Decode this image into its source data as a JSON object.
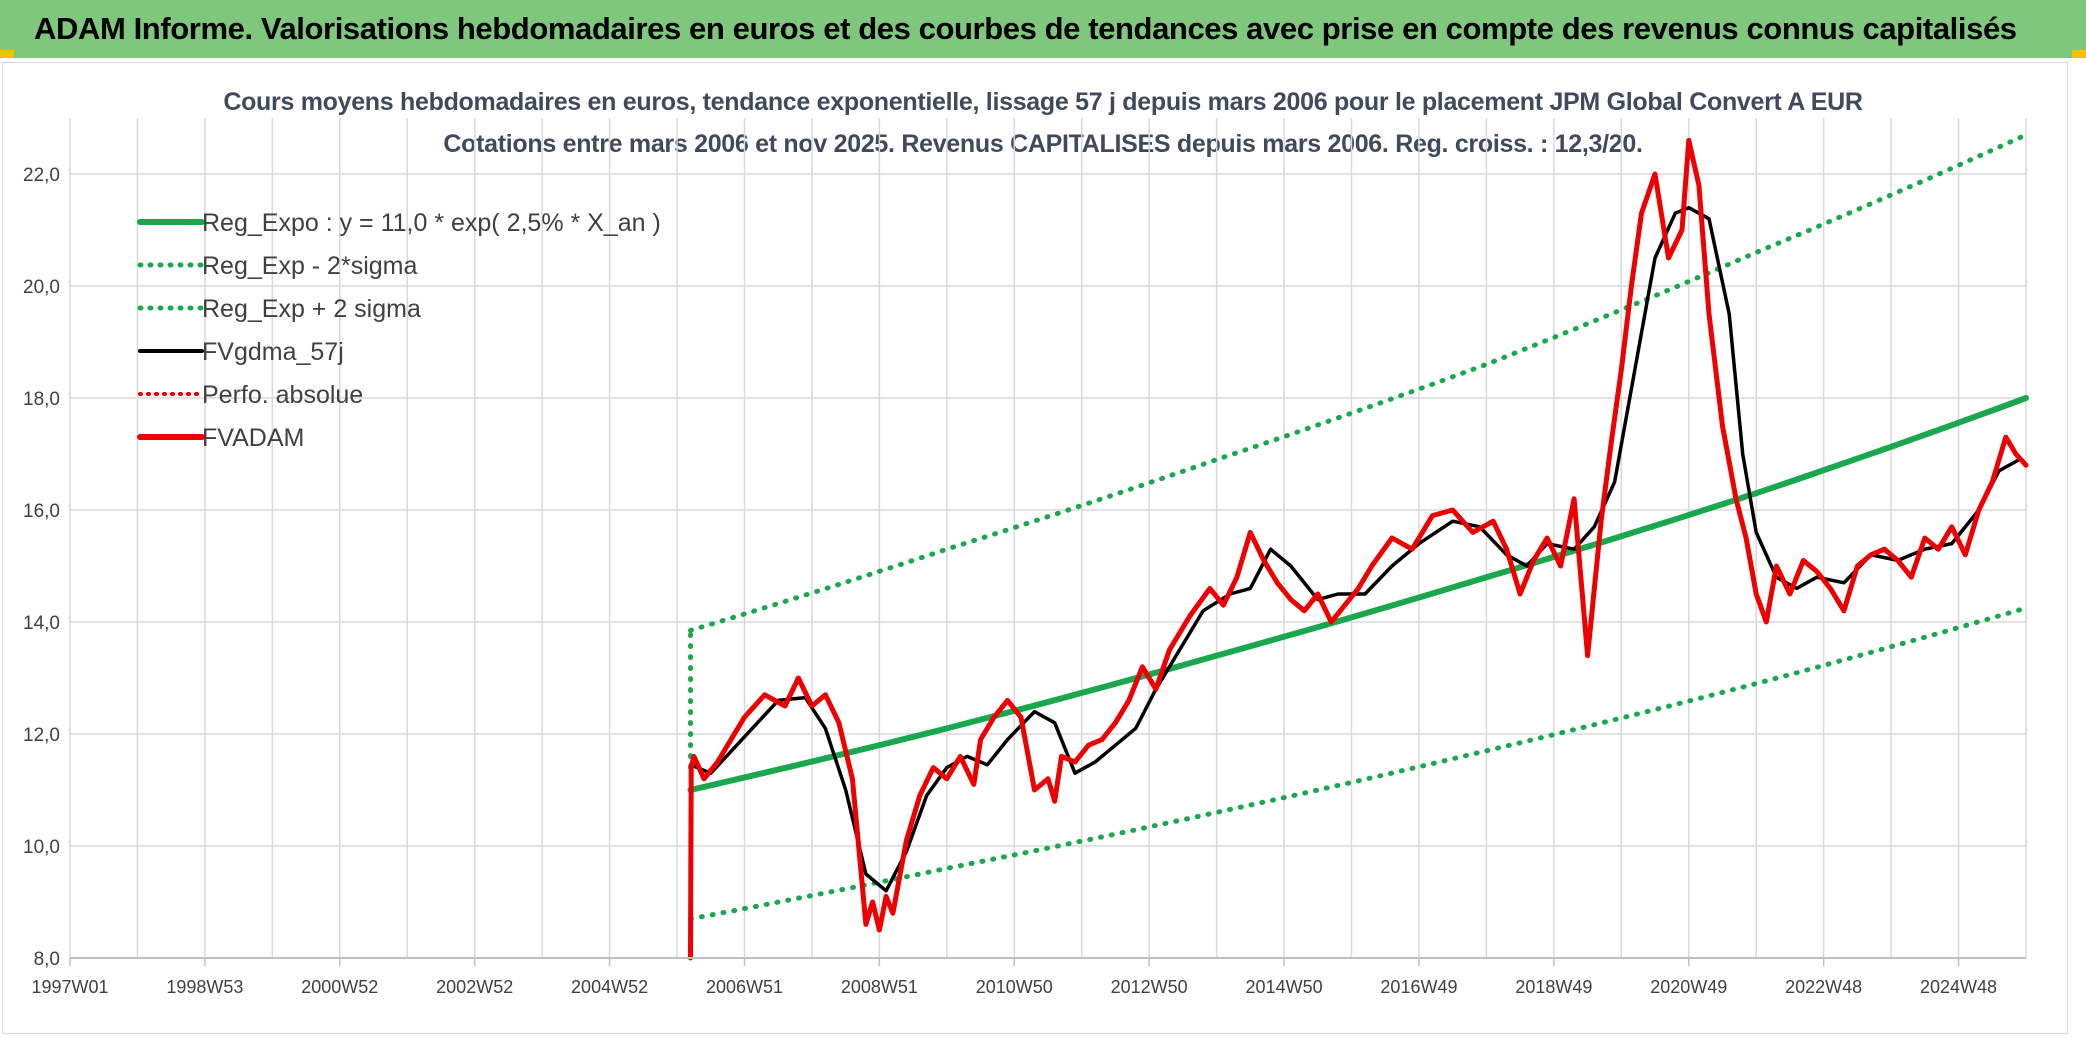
{
  "banner": {
    "title": "ADAM Informe. Valorisations hebdomadaires en euros et des courbes de tendances avec prise en compte des revenus connus capitalisés"
  },
  "colors": {
    "banner_bg": "#7ec77c",
    "trend_green": "#1aa84e",
    "dotted_green": "#1aa84e",
    "fvgdma_black": "#000000",
    "fvadam_red": "#ee0000",
    "perfo_red": "#ee0000"
  },
  "chart_data": {
    "type": "line",
    "title_line1": "Cours moyens hebdomadaires en euros, tendance exponentielle, lissage 57 j depuis mars 2006 pour le placement JPM Global Convert A EUR",
    "title_line2": "Cotations entre mars 2006 et nov 2025. Revenus CAPITALISES depuis mars 2006. Reg. croiss. : 12,3/20.",
    "xlabel": "",
    "ylabel": "",
    "x_range": [
      1997.0,
      2026.0
    ],
    "ylim": [
      8.0,
      23.0
    ],
    "y_ticks": [
      "8,0",
      "10,0",
      "12,0",
      "14,0",
      "16,0",
      "18,0",
      "20,0",
      "22,0"
    ],
    "x_ticks": [
      "1997W01",
      "1998W53",
      "2000W52",
      "2002W52",
      "2004W52",
      "2006W51",
      "2008W51",
      "2010W50",
      "2012W50",
      "2014W50",
      "2016W49",
      "2018W49",
      "2020W49",
      "2022W48",
      "2024W48"
    ],
    "grid": true,
    "legend_position": "top-left",
    "legend": [
      {
        "label": "Reg_Expo : y = 11,0 * exp( 2,5% *  X_an )",
        "style": "solid-thick-green"
      },
      {
        "label": "Reg_Exp - 2*sigma",
        "style": "dotted-green"
      },
      {
        "label": "Reg_Exp + 2 sigma",
        "style": "dotted-green"
      },
      {
        "label": "FVgdma_57j",
        "style": "solid-black"
      },
      {
        "label": "Perfo. absolue",
        "style": "dotted-red"
      },
      {
        "label": "FVADAM",
        "style": "solid-red"
      }
    ],
    "series": [
      {
        "name": "Reg_Expo : y = 11,0 * exp( 2,5% *  X_an )",
        "x": [
          2006.2,
          2010.0,
          2014.0,
          2018.0,
          2022.0,
          2026.0
        ],
        "y": [
          11.0,
          12.1,
          13.4,
          14.8,
          16.3,
          18.0
        ]
      },
      {
        "name": "Reg_Exp - 2*sigma",
        "x": [
          2006.2,
          2010.0,
          2014.0,
          2018.0,
          2022.0,
          2026.0
        ],
        "y": [
          8.7,
          9.6,
          10.6,
          11.7,
          12.9,
          14.25
        ]
      },
      {
        "name": "Reg_Exp + 2 sigma",
        "x": [
          2006.2,
          2010.0,
          2014.0,
          2018.0,
          2022.0,
          2026.0
        ],
        "y": [
          13.85,
          15.3,
          16.9,
          18.6,
          20.6,
          22.7
        ]
      },
      {
        "name": "FVgdma_57j",
        "x": [
          2006.2,
          2006.5,
          2007.0,
          2007.5,
          2007.9,
          2008.2,
          2008.5,
          2008.8,
          2009.1,
          2009.4,
          2009.7,
          2010.0,
          2010.3,
          2010.6,
          2010.9,
          2011.3,
          2011.6,
          2011.9,
          2012.2,
          2012.5,
          2012.8,
          2013.1,
          2013.5,
          2013.8,
          2014.2,
          2014.5,
          2014.8,
          2015.1,
          2015.5,
          2015.8,
          2016.2,
          2016.6,
          2017.0,
          2017.5,
          2017.9,
          2018.3,
          2018.6,
          2018.9,
          2019.3,
          2019.6,
          2019.9,
          2020.2,
          2020.5,
          2020.8,
          2021.0,
          2021.3,
          2021.6,
          2021.8,
          2022.0,
          2022.3,
          2022.6,
          2022.9,
          2023.3,
          2023.7,
          2024.1,
          2024.5,
          2024.9,
          2025.3,
          2025.6,
          2025.9
        ],
        "y": [
          11.45,
          11.3,
          11.95,
          12.6,
          12.65,
          12.1,
          11.0,
          9.5,
          9.2,
          9.9,
          10.9,
          11.4,
          11.6,
          11.45,
          11.9,
          12.4,
          12.2,
          11.3,
          11.5,
          11.8,
          12.1,
          12.8,
          13.6,
          14.2,
          14.5,
          14.6,
          15.3,
          15.0,
          14.4,
          14.5,
          14.5,
          15.0,
          15.4,
          15.8,
          15.7,
          15.2,
          15.0,
          15.4,
          15.3,
          15.7,
          16.5,
          18.5,
          20.5,
          21.3,
          21.4,
          21.2,
          19.5,
          17.0,
          15.6,
          14.8,
          14.6,
          14.8,
          14.7,
          15.2,
          15.1,
          15.3,
          15.4,
          16.0,
          16.7,
          16.9
        ]
      },
      {
        "name": "FVADAM",
        "x": [
          2006.2,
          2006.21,
          2006.25,
          2006.4,
          2006.6,
          2006.8,
          2007.0,
          2007.3,
          2007.6,
          2007.8,
          2008.0,
          2008.2,
          2008.4,
          2008.6,
          2008.8,
          2008.9,
          2009.0,
          2009.1,
          2009.2,
          2009.4,
          2009.6,
          2009.8,
          2010.0,
          2010.2,
          2010.4,
          2010.5,
          2010.7,
          2010.9,
          2011.1,
          2011.3,
          2011.5,
          2011.6,
          2011.7,
          2011.9,
          2012.1,
          2012.3,
          2012.5,
          2012.7,
          2012.9,
          2013.1,
          2013.3,
          2013.6,
          2013.9,
          2014.1,
          2014.3,
          2014.5,
          2014.7,
          2014.9,
          2015.1,
          2015.3,
          2015.5,
          2015.7,
          2015.9,
          2016.1,
          2016.3,
          2016.6,
          2016.9,
          2017.2,
          2017.5,
          2017.8,
          2018.1,
          2018.3,
          2018.5,
          2018.7,
          2018.9,
          2019.1,
          2019.3,
          2019.5,
          2019.7,
          2019.85,
          2020.0,
          2020.15,
          2020.3,
          2020.5,
          2020.7,
          2020.9,
          2021.0,
          2021.15,
          2021.3,
          2021.5,
          2021.7,
          2021.85,
          2022.0,
          2022.15,
          2022.3,
          2022.5,
          2022.7,
          2022.9,
          2023.1,
          2023.3,
          2023.5,
          2023.7,
          2023.9,
          2024.1,
          2024.3,
          2024.5,
          2024.7,
          2024.9,
          2025.1,
          2025.3,
          2025.5,
          2025.7,
          2025.85,
          2026.0
        ],
        "y": [
          8.0,
          11.4,
          11.6,
          11.2,
          11.5,
          11.9,
          12.3,
          12.7,
          12.5,
          13.0,
          12.5,
          12.7,
          12.2,
          11.2,
          8.6,
          9.0,
          8.5,
          9.1,
          8.8,
          10.1,
          10.9,
          11.4,
          11.2,
          11.6,
          11.1,
          11.9,
          12.3,
          12.6,
          12.3,
          11.0,
          11.2,
          10.8,
          11.6,
          11.5,
          11.8,
          11.9,
          12.2,
          12.6,
          13.2,
          12.8,
          13.5,
          14.1,
          14.6,
          14.3,
          14.8,
          15.6,
          15.1,
          14.7,
          14.4,
          14.2,
          14.5,
          14.0,
          14.3,
          14.6,
          15.0,
          15.5,
          15.3,
          15.9,
          16.0,
          15.6,
          15.8,
          15.3,
          14.5,
          15.1,
          15.5,
          15.0,
          16.2,
          13.4,
          15.8,
          17.2,
          18.5,
          20.0,
          21.3,
          22.0,
          20.5,
          21.0,
          22.6,
          21.8,
          19.5,
          17.5,
          16.2,
          15.5,
          14.5,
          14.0,
          15.0,
          14.5,
          15.1,
          14.9,
          14.6,
          14.2,
          15.0,
          15.2,
          15.3,
          15.1,
          14.8,
          15.5,
          15.3,
          15.7,
          15.2,
          16.0,
          16.5,
          17.3,
          17.0,
          16.8
        ]
      }
    ]
  }
}
